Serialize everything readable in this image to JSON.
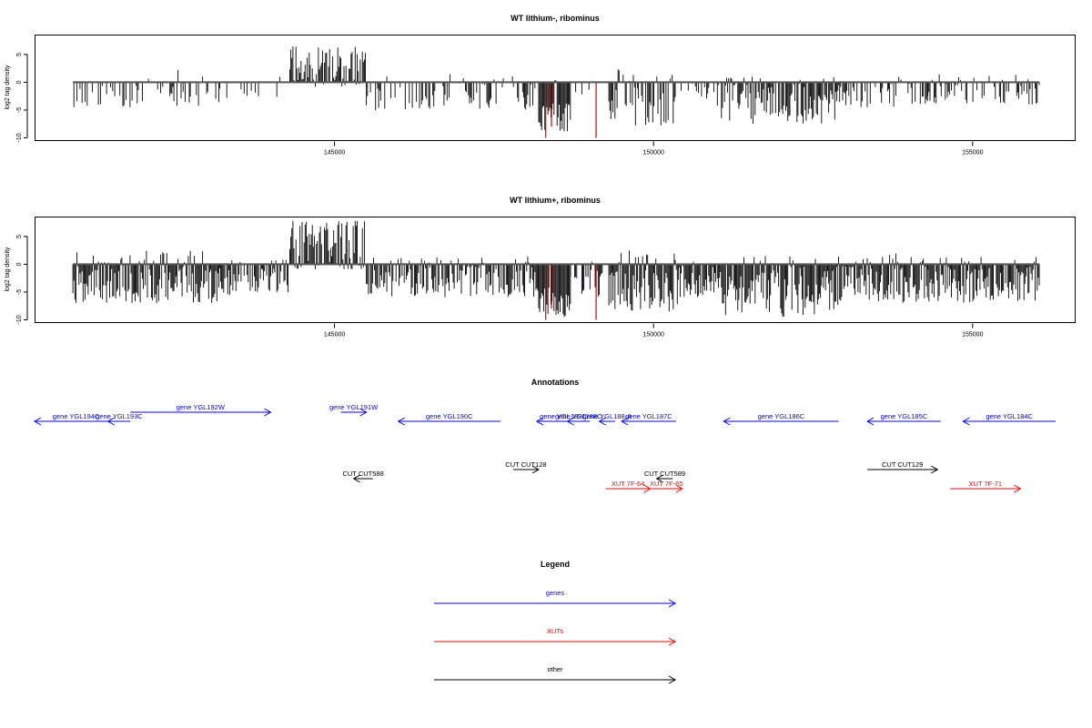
{
  "chart_data": [
    {
      "type": "bar",
      "title": "WT lithium-, ribominus",
      "xlabel": "",
      "ylabel": "log2 tag density",
      "xlim": [
        140300,
        156600
      ],
      "ylim": [
        -10.5,
        8.5
      ],
      "yticks": [
        -10,
        -5,
        0,
        5
      ],
      "ytick_labels": [
        "-10",
        "-5",
        "0",
        "5"
      ],
      "xticks": [
        145000,
        150000,
        155000
      ],
      "xtick_labels": [
        "145000",
        "150000",
        "155000"
      ],
      "grid": false,
      "regions": [
        {
          "start": 140900,
          "end": 143200,
          "density": 0.35,
          "min": -4.5,
          "max": 2.5
        },
        {
          "start": 143200,
          "end": 144300,
          "density": 0.15,
          "min": -3.0,
          "max": 1.0
        },
        {
          "start": 144300,
          "end": 145500,
          "density": 0.9,
          "min": -1.0,
          "max": 6.5,
          "bias": "up"
        },
        {
          "start": 145500,
          "end": 148200,
          "density": 0.4,
          "min": -5.0,
          "max": 1.5
        },
        {
          "start": 148200,
          "end": 148700,
          "density": 1.0,
          "min": -9.0,
          "max": 0.5,
          "bias": "down"
        },
        {
          "start": 148700,
          "end": 149300,
          "density": 0.2,
          "min": -3.0,
          "max": 0.5
        },
        {
          "start": 149300,
          "end": 150400,
          "density": 0.6,
          "min": -8.0,
          "max": 2.5
        },
        {
          "start": 150400,
          "end": 151000,
          "density": 0.3,
          "min": -3.0,
          "max": 1.0
        },
        {
          "start": 151000,
          "end": 152900,
          "density": 0.85,
          "min": -7.5,
          "max": 1.0
        },
        {
          "start": 152900,
          "end": 154300,
          "density": 0.45,
          "min": -4.5,
          "max": 3.5
        },
        {
          "start": 154300,
          "end": 156050,
          "density": 0.5,
          "min": -4.0,
          "max": 1.5
        }
      ],
      "highlight_color": "#cc0000",
      "highlights": [
        [
          148310,
          -10.0
        ],
        [
          148400,
          -8.0
        ],
        [
          149100,
          -10.0
        ]
      ]
    },
    {
      "type": "bar",
      "title": "WT lithium+, ribominus",
      "xlabel": "",
      "ylabel": "log2 tag density",
      "xlim": [
        140300,
        156600
      ],
      "ylim": [
        -10.5,
        8.5
      ],
      "yticks": [
        -10,
        -5,
        0,
        5
      ],
      "ytick_labels": [
        "-10",
        "-5",
        "0",
        "5"
      ],
      "xticks": [
        145000,
        150000,
        155000
      ],
      "xtick_labels": [
        "145000",
        "150000",
        "155000"
      ],
      "grid": false,
      "regions": [
        {
          "start": 140900,
          "end": 143200,
          "density": 1.0,
          "min": -7.0,
          "max": 2.5
        },
        {
          "start": 143200,
          "end": 144300,
          "density": 0.9,
          "min": -5.5,
          "max": 1.0
        },
        {
          "start": 144300,
          "end": 145500,
          "density": 1.0,
          "min": -1.0,
          "max": 8.0,
          "bias": "up"
        },
        {
          "start": 145500,
          "end": 148200,
          "density": 0.8,
          "min": -6.0,
          "max": 1.5
        },
        {
          "start": 148200,
          "end": 148700,
          "density": 1.0,
          "min": -9.5,
          "max": 0.5,
          "bias": "down"
        },
        {
          "start": 148700,
          "end": 149300,
          "density": 0.5,
          "min": -6.0,
          "max": 1.0
        },
        {
          "start": 149300,
          "end": 150400,
          "density": 1.0,
          "min": -8.5,
          "max": 2.5
        },
        {
          "start": 150400,
          "end": 151000,
          "density": 0.9,
          "min": -6.0,
          "max": 1.5
        },
        {
          "start": 151000,
          "end": 152900,
          "density": 1.0,
          "min": -9.5,
          "max": 1.5
        },
        {
          "start": 152900,
          "end": 154300,
          "density": 1.0,
          "min": -7.0,
          "max": 2.0
        },
        {
          "start": 154300,
          "end": 156050,
          "density": 1.0,
          "min": -7.0,
          "max": 1.5
        }
      ],
      "highlight_color": "#cc0000",
      "highlights": [
        [
          148310,
          -10.0
        ],
        [
          148400,
          -8.0
        ],
        [
          149100,
          -10.0
        ]
      ]
    }
  ],
  "annotations": {
    "title": "Annotations",
    "features": [
      {
        "label": "gene YGL194C",
        "start": 140300,
        "end": 141600,
        "strand": "-",
        "type": "gene",
        "row": 0
      },
      {
        "label": "gene YGL193C",
        "start": 141450,
        "end": 141800,
        "strand": "-",
        "type": "gene",
        "row": 0
      },
      {
        "label": "gene YGL192W",
        "start": 141800,
        "end": 144000,
        "strand": "+",
        "type": "gene",
        "row": 1
      },
      {
        "label": "gene YGL191W",
        "start": 145100,
        "end": 145500,
        "strand": "+",
        "type": "gene",
        "row": 1
      },
      {
        "label": "gene YGL190C",
        "start": 146000,
        "end": 147600,
        "strand": "-",
        "type": "gene",
        "row": 0
      },
      {
        "label": "gene YGL189C",
        "start": 148170,
        "end": 149000,
        "strand": "-",
        "type": "gene",
        "row": 0
      },
      {
        "label": "gene YGL188C",
        "start": 148650,
        "end": 149000,
        "strand": "-",
        "type": "gene",
        "row": 0
      },
      {
        "label": "gene YGL188-A",
        "start": 149150,
        "end": 149400,
        "strand": "-",
        "type": "gene",
        "row": 0
      },
      {
        "label": "gene YGL187C",
        "start": 149500,
        "end": 150350,
        "strand": "-",
        "type": "gene",
        "row": 0
      },
      {
        "label": "gene YGL186C",
        "start": 151100,
        "end": 152900,
        "strand": "-",
        "type": "gene",
        "row": 0
      },
      {
        "label": "gene YGL185C",
        "start": 153350,
        "end": 154500,
        "strand": "-",
        "type": "gene",
        "row": 0
      },
      {
        "label": "gene YGL184C",
        "start": 154850,
        "end": 156300,
        "strand": "-",
        "type": "gene",
        "row": 0
      },
      {
        "label": "CUT CUT588",
        "start": 145300,
        "end": 145600,
        "strand": "-",
        "type": "other",
        "row": 2
      },
      {
        "label": "CUT CUT128",
        "start": 147800,
        "end": 148200,
        "strand": "+",
        "type": "other",
        "row": 3
      },
      {
        "label": "CUT CUT589",
        "start": 150050,
        "end": 150300,
        "strand": "-",
        "type": "other",
        "row": 2
      },
      {
        "label": "CUT CUT129",
        "start": 153350,
        "end": 154450,
        "strand": "+",
        "type": "other",
        "row": 3
      },
      {
        "label": "XUT 7F-64",
        "start": 149250,
        "end": 149950,
        "strand": "+",
        "type": "xut",
        "row": 4
      },
      {
        "label": "XUT 7F-65",
        "start": 149950,
        "end": 150450,
        "strand": "+",
        "type": "xut",
        "row": 4
      },
      {
        "label": "XUT 7F-71",
        "start": 154650,
        "end": 155750,
        "strand": "+",
        "type": "xut",
        "row": 4
      }
    ]
  },
  "legend": {
    "title": "Legend",
    "items": [
      {
        "label": "genes",
        "color": "#0000ff"
      },
      {
        "label": "XUTs",
        "color": "#ff0000"
      },
      {
        "label": "other",
        "color": "#000000"
      }
    ]
  },
  "colors": {
    "gene": "#0000ff",
    "xut": "#ff0000",
    "other": "#000000",
    "bar": "#000000",
    "axis": "#555555"
  }
}
